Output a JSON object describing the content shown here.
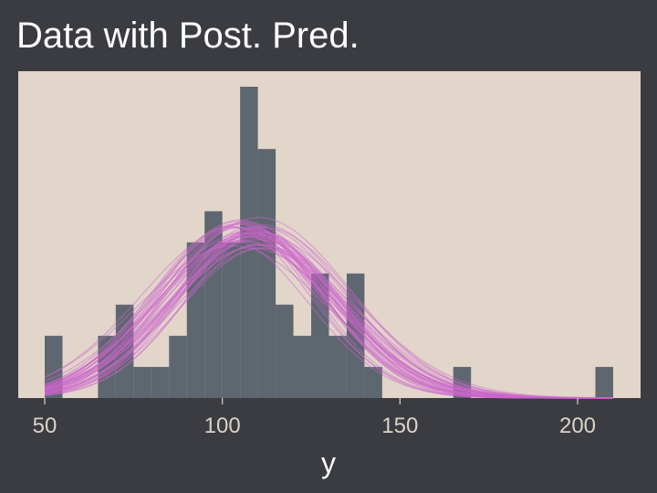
{
  "chart_data": {
    "type": "bar",
    "title": "Data with Post. Pred.",
    "xlabel": "y",
    "ylabel": "",
    "xlim": [
      45,
      218
    ],
    "ylim": [
      0,
      10
    ],
    "x_ticks": [
      50,
      100,
      150,
      200
    ],
    "grid": false,
    "legend": "none",
    "histogram": {
      "bin_width": 5,
      "bins": [
        {
          "x0": 50,
          "count": 2
        },
        {
          "x0": 65,
          "count": 2
        },
        {
          "x0": 70,
          "count": 3
        },
        {
          "x0": 75,
          "count": 1
        },
        {
          "x0": 80,
          "count": 1
        },
        {
          "x0": 85,
          "count": 2
        },
        {
          "x0": 90,
          "count": 5
        },
        {
          "x0": 95,
          "count": 6
        },
        {
          "x0": 100,
          "count": 5
        },
        {
          "x0": 105,
          "count": 10
        },
        {
          "x0": 110,
          "count": 8
        },
        {
          "x0": 115,
          "count": 3
        },
        {
          "x0": 120,
          "count": 2
        },
        {
          "x0": 125,
          "count": 4
        },
        {
          "x0": 130,
          "count": 2
        },
        {
          "x0": 135,
          "count": 4
        },
        {
          "x0": 140,
          "count": 1
        },
        {
          "x0": 165,
          "count": 1
        },
        {
          "x0": 205,
          "count": 1
        }
      ]
    },
    "posterior_predictive": {
      "type": "normal-density-curves",
      "curve_count": 40,
      "mean_range": [
        102,
        112
      ],
      "sd_range": [
        20,
        27
      ],
      "peak_height_range": [
        4.8,
        5.8
      ],
      "x_range": [
        50,
        210
      ]
    },
    "colors": {
      "bars": "#5e6670",
      "curves": "#cc66cc",
      "panel": "#e2d5ca",
      "background": "#3a3c42",
      "title": "#ffffff",
      "ticks": "#dcd2c6"
    }
  }
}
